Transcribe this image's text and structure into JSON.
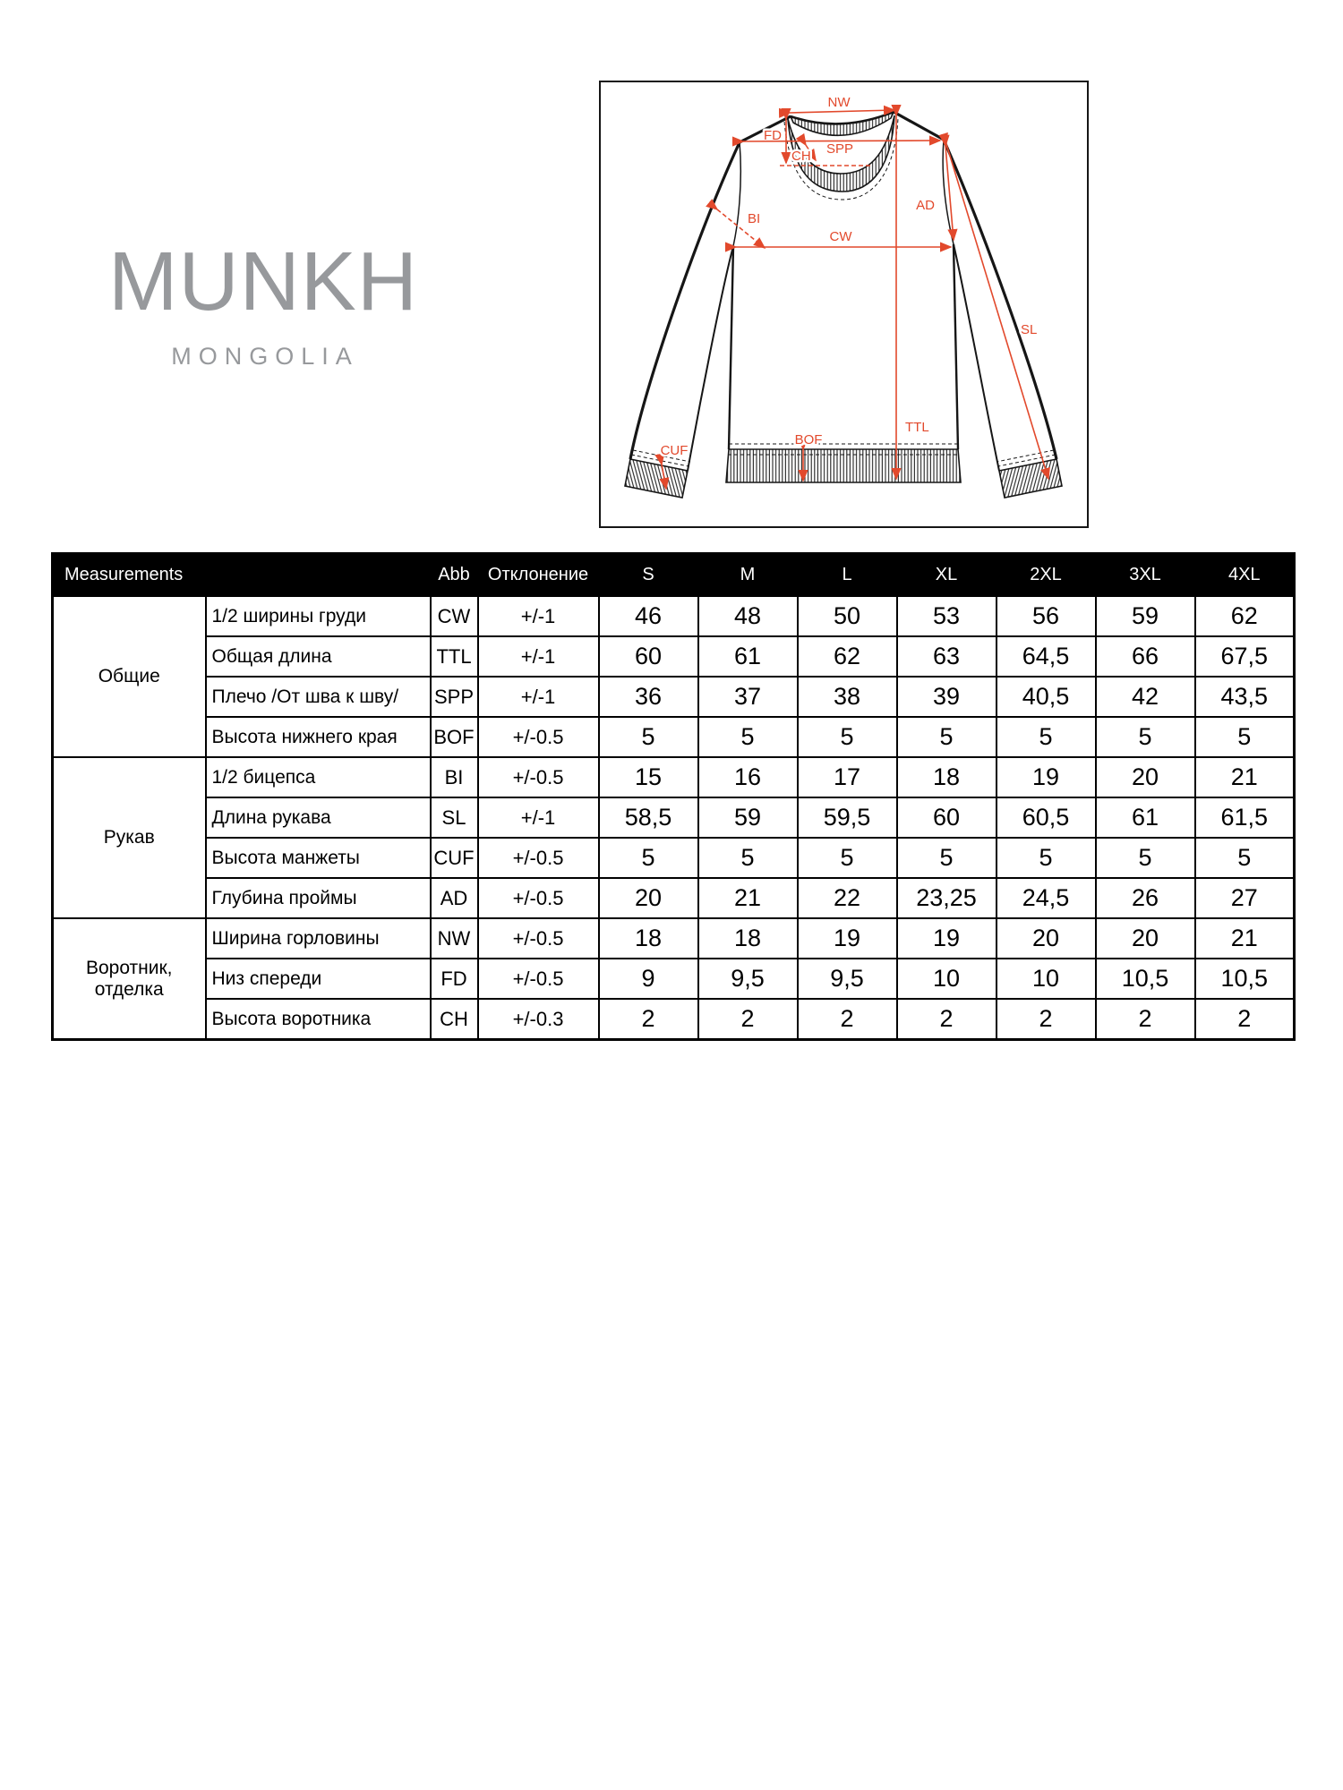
{
  "colors": {
    "accent": "#e2492c",
    "logo_gray": "#97999c"
  },
  "brand": {
    "name": "MUNKH",
    "subtitle": "MONGOLIA"
  },
  "diagram": {
    "labels": {
      "nw": "NW",
      "fd": "FD",
      "spp": "SPP",
      "ch": "CH",
      "bi": "BI",
      "ad": "AD",
      "cw": "CW",
      "sl": "SL",
      "ttl": "TTL",
      "bof": "BOF",
      "cuf": "CUF"
    }
  },
  "table": {
    "headers": {
      "measurements": "Measurements",
      "abb": "Abb",
      "deviation": "Отклонение",
      "sizes": [
        "S",
        "M",
        "L",
        "XL",
        "2XL",
        "3XL",
        "4XL"
      ]
    },
    "groups": [
      {
        "name": "Общие",
        "rows": [
          {
            "label": "1/2 ширины груди",
            "abb": "CW",
            "deviation": "+/-1",
            "values": [
              "46",
              "48",
              "50",
              "53",
              "56",
              "59",
              "62"
            ]
          },
          {
            "label": "Общая длина",
            "abb": "TTL",
            "deviation": "+/-1",
            "values": [
              "60",
              "61",
              "62",
              "63",
              "64,5",
              "66",
              "67,5"
            ]
          },
          {
            "label": "Плечо /От шва к шву/",
            "abb": "SPP",
            "deviation": "+/-1",
            "values": [
              "36",
              "37",
              "38",
              "39",
              "40,5",
              "42",
              "43,5"
            ]
          },
          {
            "label": "Высота нижнего края",
            "abb": "BOF",
            "deviation": "+/-0.5",
            "values": [
              "5",
              "5",
              "5",
              "5",
              "5",
              "5",
              "5"
            ]
          }
        ]
      },
      {
        "name": "Рукав",
        "rows": [
          {
            "label": "1/2 бицепса",
            "abb": "BI",
            "deviation": "+/-0.5",
            "values": [
              "15",
              "16",
              "17",
              "18",
              "19",
              "20",
              "21"
            ]
          },
          {
            "label": "Длина рукава",
            "abb": "SL",
            "deviation": "+/-1",
            "values": [
              "58,5",
              "59",
              "59,5",
              "60",
              "60,5",
              "61",
              "61,5"
            ]
          },
          {
            "label": "Высота манжеты",
            "abb": "CUF",
            "deviation": "+/-0.5",
            "values": [
              "5",
              "5",
              "5",
              "5",
              "5",
              "5",
              "5"
            ]
          },
          {
            "label": "Глубина проймы",
            "abb": "AD",
            "deviation": "+/-0.5",
            "values": [
              "20",
              "21",
              "22",
              "23,25",
              "24,5",
              "26",
              "27"
            ]
          }
        ]
      },
      {
        "name": "Воротник, отделка",
        "rows": [
          {
            "label": "Ширина горловины",
            "abb": "NW",
            "deviation": "+/-0.5",
            "values": [
              "18",
              "18",
              "19",
              "19",
              "20",
              "20",
              "21"
            ]
          },
          {
            "label": "Низ спереди",
            "abb": "FD",
            "deviation": "+/-0.5",
            "values": [
              "9",
              "9,5",
              "9,5",
              "10",
              "10",
              "10,5",
              "10,5"
            ]
          },
          {
            "label": "Высота воротника",
            "abb": "CH",
            "deviation": "+/-0.3",
            "values": [
              "2",
              "2",
              "2",
              "2",
              "2",
              "2",
              "2"
            ]
          }
        ]
      }
    ]
  }
}
